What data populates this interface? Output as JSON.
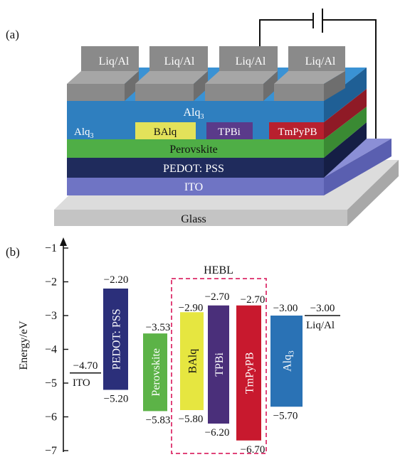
{
  "panel_a": {
    "label": "(a)",
    "electrodes": [
      "Liq/Al",
      "Liq/Al",
      "Liq/Al",
      "Liq/Al"
    ],
    "layers": {
      "alq3_top": "Alq",
      "alq3_top_sub": "3",
      "alq3_left": "Alq",
      "alq3_left_sub": "3",
      "balq": "BAlq",
      "tpbi": "TPBi",
      "tmpypb": "TmPyPB",
      "perovskite": "Perovskite",
      "pedot": "PEDOT: PSS",
      "ito": "ITO",
      "glass": "Glass"
    },
    "colors": {
      "electrode": "#8a8a8a",
      "alq3": "#2f7fbf",
      "balq": "#e3e25a",
      "tpbi": "#5a3a8a",
      "tmpypb": "#b8202e",
      "perovskite": "#4fae46",
      "pedot": "#1f2b5c",
      "ito": "#6f74c4",
      "glass": "#c8c8c8"
    }
  },
  "panel_b": {
    "label": "(b)",
    "ylabel": "Energy/eV",
    "yticks": [
      "−1",
      "−2",
      "−3",
      "−4",
      "−5",
      "−6",
      "−7"
    ],
    "hebl_label": "HEBL",
    "ito": {
      "label": "ITO",
      "level_label": "−4.70",
      "level": -4.7
    },
    "liq": {
      "label": "Liq/Al",
      "level_label": "−3.00",
      "level": -3.0
    },
    "bars": [
      {
        "name": "PEDOT: PSS",
        "top": -2.2,
        "bottom": -5.2,
        "top_label": "−2.20",
        "bottom_label": "−5.20",
        "color": "#2b2f7a"
      },
      {
        "name": "Perovskite",
        "top": -3.53,
        "bottom": -5.83,
        "top_label": "−3.53",
        "bottom_label": "−5.83",
        "color": "#5cb347"
      },
      {
        "name": "BAlq",
        "top": -2.9,
        "bottom": -5.8,
        "top_label": "−2.90",
        "bottom_label": "−5.80",
        "color": "#e6e640"
      },
      {
        "name": "TPBi",
        "top": -2.7,
        "bottom": -6.2,
        "top_label": "−2.70",
        "bottom_label": "−6.20",
        "color": "#4a2f7a"
      },
      {
        "name": "TmPyPB",
        "top": -2.7,
        "bottom": -6.7,
        "top_label": "−2.70",
        "bottom_label": "−6.70",
        "color": "#c8192e"
      },
      {
        "name": "Alq",
        "name_sub": "3",
        "top": -3.0,
        "bottom": -5.7,
        "top_label": "−3.00",
        "bottom_label": "−5.70",
        "color": "#2a72b5"
      }
    ]
  }
}
